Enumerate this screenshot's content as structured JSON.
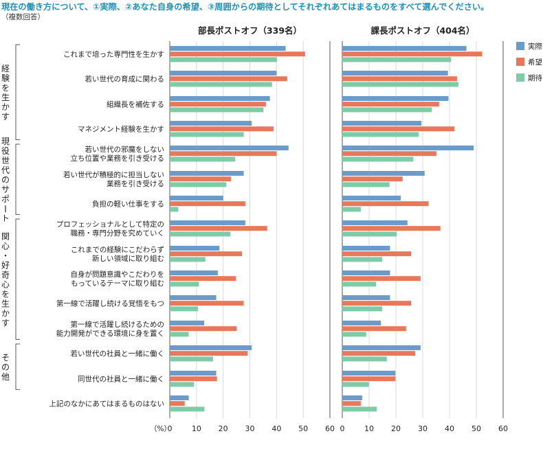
{
  "title": "現在の働き方について、①実際、②あなた自身の希望、③周囲からの期待としてそれぞれあてはまるものをすべて選んでください。",
  "note": "（複数回答）",
  "unit_label": "（%）",
  "legend": {
    "colors": {
      "実際": "#6b9bca",
      "希望": "#e8785c",
      "期待": "#7ecba8"
    }
  },
  "chart_data": [
    {
      "type": "bar",
      "orientation": "horizontal",
      "title": "部長ポストオフ（339名）",
      "xlim": [
        0,
        60
      ],
      "xticks": [
        0,
        10,
        20,
        30,
        40,
        50,
        60
      ],
      "grid": true,
      "legend_position": "right",
      "groups": [
        {
          "label": "経験を生かす",
          "categories": [
            0,
            1,
            2,
            3
          ]
        },
        {
          "label": "現役世代のサポート",
          "categories": [
            4,
            5,
            6
          ]
        },
        {
          "label": "関心・好奇心を生かす",
          "categories": [
            7,
            8,
            9,
            10,
            11
          ]
        },
        {
          "label": "その他",
          "categories": [
            12,
            13
          ]
        }
      ],
      "categories": [
        "これまで培った専門性を生かす",
        "若い世代の育成に関わる",
        "組織長を補佐する",
        "マネジメント経験を生かす",
        "若い世代の邪魔をしない\n立ち位置や業務を引き受ける",
        "若い世代が積極的に担当しない\n業務を引き受ける",
        "負担の軽い仕事をする",
        "プロフェッショナルとして特定の\n職務・専門分野を究めていく",
        "これまでの経験にこだわらず\n新しい領域に取り組む",
        "自身が問題意識やこだわりを\nもっているテーマに取り組む",
        "第一線で活躍し続ける覚悟をもつ",
        "第一線で活躍し続けるための\n能力開発ができる環境に身を置く",
        "若い世代の社員と一緒に働く",
        "同世代の社員と一緒に働く",
        "上記のなかにあてはまるものはない"
      ],
      "series": [
        {
          "name": "実際",
          "values": [
            43.4,
            40.0,
            37.5,
            30.7,
            44.5,
            27.7,
            20.0,
            28.3,
            18.6,
            18.0,
            17.4,
            12.9,
            30.7,
            17.4,
            7.1
          ]
        },
        {
          "name": "希望",
          "values": [
            50.7,
            44.0,
            36.0,
            38.9,
            40.0,
            23.0,
            28.3,
            36.5,
            27.1,
            24.8,
            27.7,
            25.1,
            29.2,
            17.7,
            5.6
          ]
        },
        {
          "name": "期待",
          "values": [
            40.1,
            38.3,
            35.1,
            27.7,
            24.5,
            21.2,
            3.2,
            22.7,
            13.3,
            10.9,
            10.6,
            7.1,
            16.2,
            9.1,
            13.0
          ]
        }
      ]
    },
    {
      "type": "bar",
      "orientation": "horizontal",
      "title": "課長ポストオフ（404名）",
      "xlim": [
        0,
        60
      ],
      "xticks": [
        0,
        10,
        20,
        30,
        40,
        50,
        60
      ],
      "grid": true,
      "series": [
        {
          "name": "実際",
          "values": [
            46.3,
            39.4,
            39.6,
            29.5,
            49.0,
            30.7,
            21.8,
            24.3,
            17.8,
            17.8,
            17.8,
            14.4,
            29.2,
            19.8,
            7.4
          ]
        },
        {
          "name": "希望",
          "values": [
            52.2,
            42.8,
            36.1,
            41.8,
            35.1,
            22.5,
            32.2,
            36.6,
            25.7,
            29.2,
            25.7,
            23.8,
            27.2,
            19.8,
            6.9
          ]
        },
        {
          "name": "期待",
          "values": [
            40.6,
            43.3,
            33.4,
            28.5,
            26.5,
            17.6,
            6.9,
            20.3,
            14.9,
            12.6,
            14.9,
            8.9,
            16.6,
            9.9,
            12.9
          ]
        }
      ]
    }
  ]
}
